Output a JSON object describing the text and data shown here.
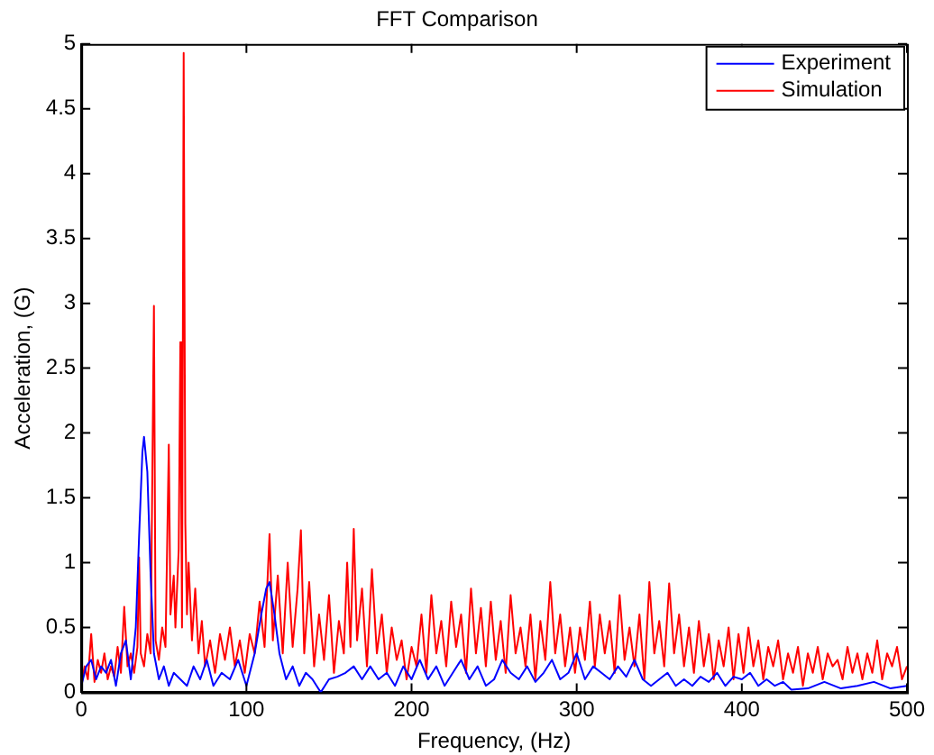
{
  "chart_data": {
    "type": "line",
    "title": "FFT Comparison",
    "xlabel": "Frequency, (Hz)",
    "ylabel": "Acceleration, (G)",
    "xlim": [
      0,
      500
    ],
    "xticks": [
      0,
      100,
      200,
      300,
      400,
      500
    ],
    "ylim": [
      0,
      5
    ],
    "yticks": [
      0,
      0.5,
      1,
      1.5,
      2,
      2.5,
      3,
      3.5,
      4,
      4.5,
      5
    ],
    "grid": false,
    "legend": "top right",
    "marker": "none",
    "line_style": "solid",
    "series": [
      {
        "name": "Experiment",
        "color": "#0000ff",
        "x": [
          0,
          3,
          6,
          9,
          12,
          15,
          18,
          21,
          24,
          27,
          30,
          33,
          35,
          37,
          38,
          40,
          42,
          44,
          47,
          50,
          53,
          56,
          60,
          64,
          68,
          72,
          76,
          80,
          85,
          90,
          95,
          100,
          105,
          109,
          112,
          114,
          117,
          120,
          124,
          128,
          132,
          136,
          140,
          145,
          150,
          155,
          160,
          165,
          170,
          175,
          180,
          185,
          190,
          195,
          200,
          205,
          210,
          215,
          220,
          225,
          230,
          235,
          240,
          245,
          250,
          255,
          260,
          265,
          270,
          275,
          280,
          285,
          290,
          295,
          300,
          305,
          310,
          315,
          320,
          325,
          330,
          335,
          340,
          345,
          350,
          355,
          360,
          365,
          370,
          375,
          380,
          385,
          390,
          395,
          400,
          405,
          410,
          415,
          420,
          425,
          430,
          440,
          450,
          460,
          470,
          480,
          490,
          500
        ],
        "values": [
          0.05,
          0.2,
          0.25,
          0.1,
          0.2,
          0.15,
          0.25,
          0.05,
          0.3,
          0.4,
          0.1,
          0.5,
          1.2,
          1.85,
          1.97,
          1.7,
          0.9,
          0.3,
          0.1,
          0.2,
          0.05,
          0.15,
          0.1,
          0.05,
          0.2,
          0.1,
          0.25,
          0.05,
          0.15,
          0.1,
          0.25,
          0.05,
          0.3,
          0.6,
          0.8,
          0.85,
          0.6,
          0.3,
          0.1,
          0.2,
          0.05,
          0.15,
          0.1,
          0.0,
          0.1,
          0.12,
          0.15,
          0.2,
          0.1,
          0.2,
          0.1,
          0.15,
          0.05,
          0.2,
          0.1,
          0.25,
          0.1,
          0.2,
          0.05,
          0.15,
          0.25,
          0.1,
          0.2,
          0.05,
          0.1,
          0.25,
          0.15,
          0.1,
          0.2,
          0.08,
          0.15,
          0.25,
          0.1,
          0.15,
          0.3,
          0.1,
          0.2,
          0.15,
          0.1,
          0.2,
          0.12,
          0.25,
          0.1,
          0.05,
          0.1,
          0.15,
          0.05,
          0.1,
          0.05,
          0.12,
          0.08,
          0.15,
          0.05,
          0.12,
          0.1,
          0.15,
          0.05,
          0.1,
          0.05,
          0.08,
          0.02,
          0.03,
          0.08,
          0.03,
          0.05,
          0.08,
          0.03,
          0.05
        ]
      },
      {
        "name": "Simulation",
        "color": "#ff0000",
        "x": [
          0,
          2,
          4,
          6,
          8,
          10,
          12,
          14,
          16,
          18,
          20,
          22,
          24,
          26,
          28,
          30,
          32,
          34,
          35,
          36,
          38,
          40,
          42,
          44,
          45,
          47,
          49,
          51,
          53,
          54,
          56,
          57,
          59,
          60,
          61,
          62,
          63,
          64,
          65,
          67,
          69,
          71,
          73,
          75,
          78,
          81,
          84,
          87,
          90,
          93,
          96,
          99,
          102,
          105,
          108,
          111,
          114,
          116,
          119,
          122,
          125,
          128,
          131,
          133,
          135,
          138,
          141,
          144,
          147,
          150,
          153,
          156,
          159,
          161,
          163,
          165,
          167,
          170,
          173,
          176,
          179,
          182,
          185,
          188,
          191,
          194,
          197,
          200,
          203,
          206,
          209,
          212,
          215,
          218,
          221,
          224,
          227,
          230,
          233,
          236,
          239,
          242,
          245,
          248,
          251,
          254,
          257,
          260,
          263,
          266,
          269,
          272,
          275,
          278,
          281,
          284,
          287,
          290,
          293,
          296,
          299,
          302,
          305,
          308,
          311,
          314,
          317,
          320,
          323,
          326,
          329,
          332,
          335,
          338,
          341,
          344,
          347,
          350,
          353,
          356,
          359,
          362,
          365,
          368,
          371,
          374,
          377,
          380,
          383,
          386,
          389,
          392,
          395,
          398,
          401,
          404,
          407,
          410,
          413,
          416,
          419,
          422,
          425,
          428,
          431,
          434,
          437,
          440,
          443,
          446,
          449,
          452,
          455,
          458,
          461,
          464,
          467,
          470,
          473,
          476,
          479,
          482,
          485,
          488,
          491,
          494,
          497,
          500
        ],
        "values": [
          0.05,
          0.2,
          0.1,
          0.45,
          0.08,
          0.25,
          0.15,
          0.3,
          0.1,
          0.2,
          0.12,
          0.35,
          0.15,
          0.66,
          0.2,
          0.3,
          0.15,
          0.35,
          1.04,
          0.3,
          0.2,
          0.45,
          0.3,
          2.98,
          0.4,
          0.25,
          0.5,
          0.35,
          1.91,
          0.6,
          0.9,
          0.5,
          1.1,
          2.7,
          0.5,
          4.93,
          1.3,
          0.6,
          1.0,
          0.4,
          0.8,
          0.3,
          0.55,
          0.2,
          0.4,
          0.15,
          0.45,
          0.25,
          0.5,
          0.2,
          0.4,
          0.15,
          0.45,
          0.3,
          0.7,
          0.35,
          1.22,
          0.4,
          0.9,
          0.3,
          1.0,
          0.35,
          0.8,
          1.25,
          0.3,
          0.85,
          0.2,
          0.6,
          0.25,
          0.75,
          0.15,
          0.55,
          0.3,
          1.0,
          0.35,
          1.26,
          0.4,
          0.8,
          0.2,
          0.95,
          0.3,
          0.6,
          0.15,
          0.5,
          0.25,
          0.4,
          0.1,
          0.35,
          0.2,
          0.6,
          0.15,
          0.75,
          0.3,
          0.55,
          0.2,
          0.7,
          0.35,
          0.6,
          0.15,
          0.8,
          0.3,
          0.65,
          0.2,
          0.7,
          0.25,
          0.55,
          0.15,
          0.75,
          0.3,
          0.5,
          0.2,
          0.6,
          0.1,
          0.55,
          0.25,
          0.85,
          0.3,
          0.6,
          0.2,
          0.5,
          0.15,
          0.5,
          0.25,
          0.7,
          0.2,
          0.6,
          0.3,
          0.55,
          0.15,
          0.75,
          0.25,
          0.5,
          0.2,
          0.6,
          0.1,
          0.85,
          0.3,
          0.55,
          0.2,
          0.84,
          0.3,
          0.6,
          0.2,
          0.5,
          0.15,
          0.55,
          0.2,
          0.45,
          0.1,
          0.4,
          0.2,
          0.5,
          0.1,
          0.45,
          0.15,
          0.5,
          0.2,
          0.4,
          0.1,
          0.35,
          0.2,
          0.4,
          0.1,
          0.3,
          0.15,
          0.35,
          0.05,
          0.3,
          0.15,
          0.35,
          0.1,
          0.3,
          0.2,
          0.25,
          0.1,
          0.35,
          0.15,
          0.3,
          0.1,
          0.3,
          0.15,
          0.4,
          0.1,
          0.3,
          0.2,
          0.35,
          0.1,
          0.2
        ]
      }
    ]
  }
}
